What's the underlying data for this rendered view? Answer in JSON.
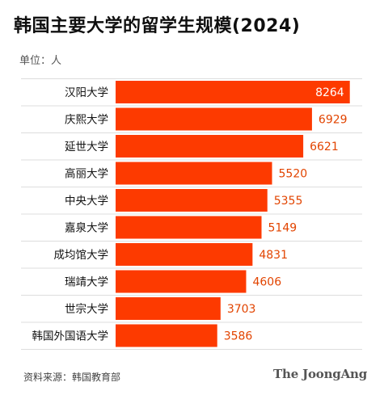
{
  "title": "韩国主要大学的留学生规模(2024)",
  "unit_label": "单位：人",
  "source": "资料来源：韩国教育部",
  "brand": "The JoongAng",
  "colors": {
    "bar": "#fd3a00",
    "label": "#e24400",
    "gridline": "#dddddd"
  },
  "chart_data": {
    "type": "bar",
    "orientation": "horizontal",
    "title": "韩国主要大学的留学生规模(2024)",
    "unit": "人",
    "xlim": [
      0,
      8700
    ],
    "categories": [
      "汉阳大学",
      "庆熙大学",
      "延世大学",
      "高丽大学",
      "中央大学",
      "嘉泉大学",
      "成均馆大学",
      "瑞靖大学",
      "世宗大学",
      "韩国外国语大学"
    ],
    "values": [
      8264,
      6929,
      6621,
      5520,
      5355,
      5149,
      4831,
      4606,
      3703,
      3586
    ]
  }
}
